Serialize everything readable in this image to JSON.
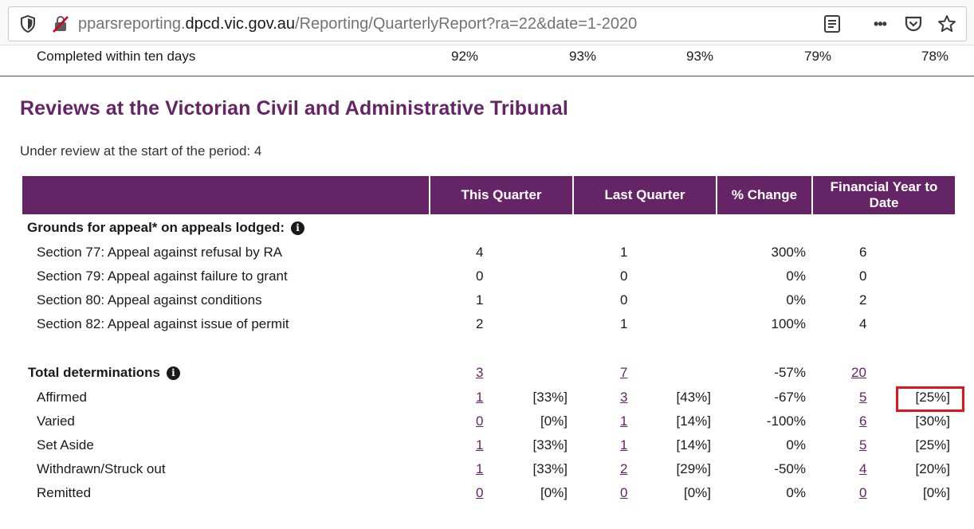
{
  "browser": {
    "url_host_prefix": "pparsreporting.",
    "url_host": "dpcd.vic.gov.au",
    "url_path": "/Reporting/QuarterlyReport?ra=22&date=1-2020",
    "icons": [
      "shield-icon",
      "no-lock-icon",
      "reader-view-icon",
      "more-icon",
      "pocket-icon",
      "bookmark-star-icon"
    ],
    "more_glyph": "•••"
  },
  "prev_row": {
    "label": "Completed within ten days",
    "values": [
      "92%",
      "93%",
      "93%",
      "79%",
      "78%"
    ]
  },
  "section": {
    "title": "Reviews at the Victorian Civil and Administrative Tribunal",
    "under_review": "Under review at the start of the period: 4"
  },
  "table": {
    "headers": [
      "",
      "This Quarter",
      "Last Quarter",
      "% Change",
      "Financial Year to Date"
    ],
    "colors": {
      "header_bg": "#652466",
      "link": "#652466",
      "highlight": "#e0161d"
    },
    "grounds": {
      "title": "Grounds for appeal* on appeals lodged:",
      "rows": [
        {
          "label": "Section 77: Appeal against refusal by RA",
          "this_q": "4",
          "last_q": "1",
          "change": "300%",
          "fytd": "6"
        },
        {
          "label": "Section 79: Appeal against failure to grant",
          "this_q": "0",
          "last_q": "0",
          "change": "0%",
          "fytd": "0"
        },
        {
          "label": "Section 80: Appeal against conditions",
          "this_q": "1",
          "last_q": "0",
          "change": "0%",
          "fytd": "2"
        },
        {
          "label": "Section 82: Appeal against issue of permit",
          "this_q": "2",
          "last_q": "1",
          "change": "100%",
          "fytd": "4"
        }
      ]
    },
    "determinations": {
      "title": "Total determinations",
      "this_q": "3",
      "last_q": "7",
      "change": "-57%",
      "fytd": "20",
      "rows": [
        {
          "label": "Affirmed",
          "this_q": "1",
          "this_pct": "[33%]",
          "last_q": "3",
          "last_pct": "[43%]",
          "change": "-67%",
          "fytd": "5",
          "fytd_pct": "[25%]"
        },
        {
          "label": "Varied",
          "this_q": "0",
          "this_pct": "[0%]",
          "last_q": "1",
          "last_pct": "[14%]",
          "change": "-100%",
          "fytd": "6",
          "fytd_pct": "[30%]"
        },
        {
          "label": "Set Aside",
          "this_q": "1",
          "this_pct": "[33%]",
          "last_q": "1",
          "last_pct": "[14%]",
          "change": "0%",
          "fytd": "5",
          "fytd_pct": "[25%]"
        },
        {
          "label": "Withdrawn/Struck out",
          "this_q": "1",
          "this_pct": "[33%]",
          "last_q": "2",
          "last_pct": "[29%]",
          "change": "-50%",
          "fytd": "4",
          "fytd_pct": "[20%]"
        },
        {
          "label": "Remitted",
          "this_q": "0",
          "this_pct": "[0%]",
          "last_q": "0",
          "last_pct": "[0%]",
          "change": "0%",
          "fytd": "0",
          "fytd_pct": "[0%]"
        }
      ]
    }
  }
}
